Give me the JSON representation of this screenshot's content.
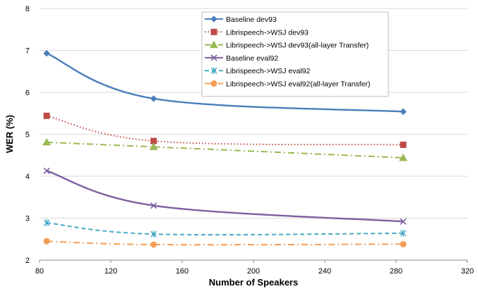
{
  "chart_data": {
    "type": "line",
    "xlabel": "Number of Speakers",
    "ylabel": "WER  (%)",
    "xlim": [
      80,
      320
    ],
    "ylim": [
      2,
      8
    ],
    "x_ticks": [
      "80",
      "120",
      "160",
      "200",
      "240",
      "280",
      "320"
    ],
    "y_ticks": [
      "2",
      "3",
      "4",
      "5",
      "6",
      "7",
      "8"
    ],
    "grid": "horizontal",
    "legend_position": "top-center",
    "x": [
      84,
      144,
      284
    ],
    "series": [
      {
        "name": "Baseline dev93",
        "values": [
          6.93,
          5.85,
          5.54
        ],
        "color": "#4a7ebb",
        "dash": "solid",
        "marker": "diamond"
      },
      {
        "name": "Librispeech->WSJ dev93",
        "values": [
          5.44,
          4.84,
          4.75
        ],
        "color": "#be4b48",
        "dash": "dot",
        "marker": "square"
      },
      {
        "name": "Librispeech->WSJ dev93(all-layer Transfer)",
        "values": [
          4.81,
          4.7,
          4.44
        ],
        "color": "#98b954",
        "dash": "dashdot",
        "marker": "triangle"
      },
      {
        "name": "Baseline eval92",
        "values": [
          4.13,
          3.3,
          2.92
        ],
        "color": "#7d5fa0",
        "dash": "solid",
        "marker": "x"
      },
      {
        "name": "Librispeech->WSJ eval92",
        "values": [
          2.89,
          2.62,
          2.64
        ],
        "color": "#46aac5",
        "dash": "dash",
        "marker": "star"
      },
      {
        "name": "Librispeech->WSJ eval92(all-layer Transfer)",
        "values": [
          2.45,
          2.37,
          2.38
        ],
        "color": "#f59d56",
        "dash": "dashdot",
        "marker": "circle"
      }
    ]
  }
}
